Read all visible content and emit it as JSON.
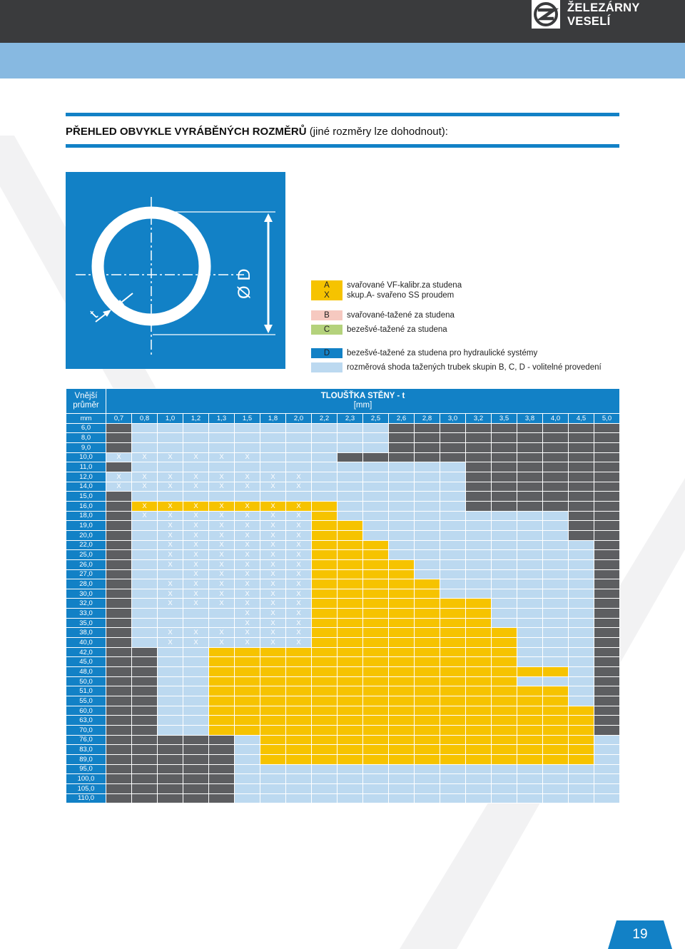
{
  "brand": {
    "line1": "ŽELEZÁRNY",
    "line2": "VESELÍ"
  },
  "heading": {
    "bold": "PŘEHLED OBVYKLE VYRÁBĚNÝCH ROZMĚRŮ",
    "rest": " (jiné rozměry lze dohodnout):"
  },
  "figure": {
    "diameter_label": "Ø D",
    "thickness_label": "t"
  },
  "legend": [
    {
      "code": "A",
      "color": "#f6c300",
      "text": "svařované VF-kalibr.za studena"
    },
    {
      "code": "X",
      "color": "#f6c300",
      "text": "skup.A- svařeno SS proudem"
    },
    {
      "code": "B",
      "color": "#f6c9c0",
      "text": "svařované-tažené za studena"
    },
    {
      "code": "C",
      "color": "#b4d27c",
      "text": "bezešvé-tažené za studena"
    },
    {
      "code": "D",
      "color": "#1281c6",
      "text": "bezešvé-tažené za studena pro hydraulické systémy"
    },
    {
      "code": "",
      "color": "#bcd9f0",
      "text": "rozměrová shoda tažených trubek skupin B, C, D - volitelné provedení"
    }
  ],
  "table": {
    "corner": [
      "Vnější",
      "průměr"
    ],
    "title": "TLOUŠŤKA STĚNY - t",
    "title_unit": "[mm]",
    "unit": "mm",
    "thicknesses": [
      "0,7",
      "0,8",
      "1,0",
      "1,2",
      "1,3",
      "1,5",
      "1,8",
      "2,0",
      "2,2",
      "2,3",
      "2,5",
      "2,6",
      "2,8",
      "3,0",
      "3,2",
      "3,5",
      "3,8",
      "4,0",
      "4,5",
      "5,0"
    ],
    "color_key": {
      "K": "dark grey",
      "L": "light blue",
      "Y": "yellow",
      "X": "marked X on light blue",
      "Z": "marked X on yellow"
    },
    "rows": [
      {
        "d": "6,0",
        "cells": "KLLLLLLLLLLKKKKKKKKK"
      },
      {
        "d": "8,0",
        "cells": "KLLLLLLLLLLKKKKKKKKK"
      },
      {
        "d": "9,0",
        "cells": "KLLLLLLLLLLKKKKKKKKK"
      },
      {
        "d": "10,0",
        "cells": "XXXXXXLLLKKKKKKKKKKK"
      },
      {
        "d": "11,0",
        "cells": "KLLLLLLLLLLLLLKKKKKK"
      },
      {
        "d": "12,0",
        "cells": "XXXXXXXXLLLLLLKKKKKK"
      },
      {
        "d": "14,0",
        "cells": "XXXXXXXXLLLLLLKKKKKK"
      },
      {
        "d": "15,0",
        "cells": "KLLLLLLLLLLLLLKKKKKK"
      },
      {
        "d": "16,0",
        "cells": "KZZZZZZZYLLLLLKKKKKK"
      },
      {
        "d": "18,0",
        "cells": "KXXXXXXXYLLLLLLLLLKK"
      },
      {
        "d": "19,0",
        "cells": "KLXXXXXXYYLLLLLLLLKK"
      },
      {
        "d": "20,0",
        "cells": "KLXXXXXXYYLLLLLLLLKK"
      },
      {
        "d": "22,0",
        "cells": "KLXXXXXXYYYLLLLLLLLK"
      },
      {
        "d": "25,0",
        "cells": "KLXXXXXXYYYLLLLLLLLK"
      },
      {
        "d": "26,0",
        "cells": "KLXXXXXXYYYYLLLLLLLK"
      },
      {
        "d": "27,0",
        "cells": "KLLXXXXXYYYYLLLLLLLK"
      },
      {
        "d": "28,0",
        "cells": "KLXXXXXXYYYYYLLLLLLK"
      },
      {
        "d": "30,0",
        "cells": "KLXXXXXXYYYYYLLLLLLK"
      },
      {
        "d": "32,0",
        "cells": "KLXXXXXXYYYYYYYLLLLK"
      },
      {
        "d": "33,0",
        "cells": "KLLLLXXXYYYYYYYLLLLK"
      },
      {
        "d": "35,0",
        "cells": "KLLLLXXXYYYYYYYLLLLK"
      },
      {
        "d": "38,0",
        "cells": "KLXXXXXXYYYYYYYYLLLK"
      },
      {
        "d": "40,0",
        "cells": "KLXXXXXXYYYYYYYYLLLK"
      },
      {
        "d": "42,0",
        "cells": "KKLLYYYYYYYYYYYYLLLK"
      },
      {
        "d": "45,0",
        "cells": "KKLLYYYYYYYYYYYYLLLK"
      },
      {
        "d": "48,0",
        "cells": "KKLLYYYYYYYYYYYYYYLK"
      },
      {
        "d": "50,0",
        "cells": "KKLLYYYYYYYYYYYYLLLK"
      },
      {
        "d": "51,0",
        "cells": "KKLLYYYYYYYYYYYYYYLK"
      },
      {
        "d": "55,0",
        "cells": "KKLLYYYYYYYYYYYYYYLK"
      },
      {
        "d": "60,0",
        "cells": "KKLLYYYYYYYYYYYYYYYK"
      },
      {
        "d": "63,0",
        "cells": "KKLLYYYYYYYYYYYYYYYK"
      },
      {
        "d": "70,0",
        "cells": "KKLLYYYYYYYYYYYYYYYK"
      },
      {
        "d": "76,0",
        "cells": "KKKKKLYYYYYYYYYYYYYL"
      },
      {
        "d": "83,0",
        "cells": "KKKKKLYYYYYYYYYYYYYL"
      },
      {
        "d": "89,0",
        "cells": "KKKKKLYYYYYYYYYYYYYL"
      },
      {
        "d": "95,0",
        "cells": "KKKKKLLLLLLLLLLLLLLL"
      },
      {
        "d": "100,0",
        "cells": "KKKKKLLLLLLLLLLLLLLL"
      },
      {
        "d": "105,0",
        "cells": "KKKKKLLLLLLLLLLLLLLL"
      },
      {
        "d": "110,0",
        "cells": "KKKKKLLLLLLLLLLLLLLL"
      }
    ]
  },
  "page_number": "19"
}
